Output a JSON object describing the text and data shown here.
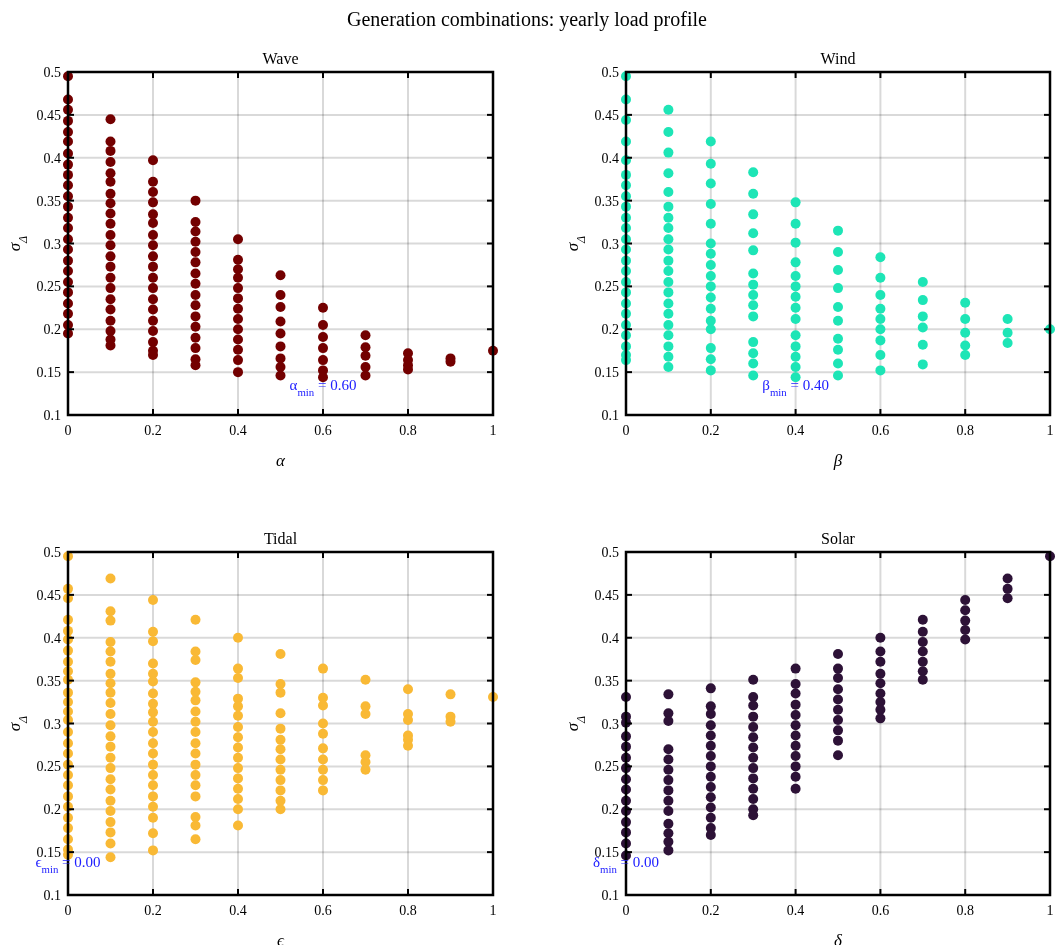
{
  "chart_data": [
    {
      "type": "scatter",
      "title": "Wave",
      "xlabel": "α",
      "ylabel": "σ$_{Δ}$",
      "color": "#730000",
      "marker": "circle",
      "grid": true,
      "xlim": [
        0,
        1
      ],
      "ylim": [
        0.1,
        0.5
      ],
      "xticks": [
        0,
        0.2,
        0.4,
        0.6,
        0.8,
        1
      ],
      "yticks": [
        0.1,
        0.15,
        0.2,
        0.25,
        0.3,
        0.35,
        0.4,
        0.45,
        0.5
      ],
      "annotations": [
        "Generation combinations: yearly load profile",
        {
          "text": "α$_{min}$ = 0.60",
          "x": 0.6,
          "y": 0.135
        }
      ],
      "x": [
        0,
        0,
        0,
        0,
        0,
        0,
        0,
        0,
        0,
        0,
        0,
        0,
        0,
        0,
        0,
        0,
        0,
        0,
        0,
        0,
        0,
        0,
        0,
        0,
        0.1,
        0.1,
        0.1,
        0.1,
        0.1,
        0.1,
        0.1,
        0.1,
        0.1,
        0.1,
        0.1,
        0.1,
        0.1,
        0.1,
        0.1,
        0.1,
        0.1,
        0.1,
        0.1,
        0.1,
        0.1,
        0.1,
        0.2,
        0.2,
        0.2,
        0.2,
        0.2,
        0.2,
        0.2,
        0.2,
        0.2,
        0.2,
        0.2,
        0.2,
        0.2,
        0.2,
        0.2,
        0.2,
        0.2,
        0.2,
        0.2,
        0.3,
        0.3,
        0.3,
        0.3,
        0.3,
        0.3,
        0.3,
        0.3,
        0.3,
        0.3,
        0.3,
        0.3,
        0.3,
        0.3,
        0.3,
        0.3,
        0.4,
        0.4,
        0.4,
        0.4,
        0.4,
        0.4,
        0.4,
        0.4,
        0.4,
        0.4,
        0.4,
        0.4,
        0.4,
        0.5,
        0.5,
        0.5,
        0.5,
        0.5,
        0.5,
        0.5,
        0.5,
        0.5,
        0.6,
        0.6,
        0.6,
        0.6,
        0.6,
        0.6,
        0.6,
        0.7,
        0.7,
        0.7,
        0.7,
        0.7,
        0.8,
        0.8,
        0.8,
        0.8,
        0.9,
        0.9,
        1
      ],
      "values": [
        0.495,
        0.468,
        0.456,
        0.443,
        0.43,
        0.419,
        0.405,
        0.392,
        0.38,
        0.368,
        0.355,
        0.343,
        0.33,
        0.318,
        0.305,
        0.293,
        0.28,
        0.268,
        0.255,
        0.243,
        0.23,
        0.218,
        0.205,
        0.195,
        0.445,
        0.419,
        0.408,
        0.395,
        0.382,
        0.372,
        0.358,
        0.347,
        0.335,
        0.323,
        0.31,
        0.298,
        0.285,
        0.273,
        0.26,
        0.248,
        0.235,
        0.223,
        0.21,
        0.198,
        0.188,
        0.181,
        0.397,
        0.372,
        0.36,
        0.348,
        0.334,
        0.324,
        0.31,
        0.298,
        0.285,
        0.273,
        0.26,
        0.248,
        0.235,
        0.223,
        0.21,
        0.198,
        0.185,
        0.175,
        0.17,
        0.35,
        0.325,
        0.314,
        0.302,
        0.29,
        0.278,
        0.265,
        0.253,
        0.24,
        0.228,
        0.215,
        0.203,
        0.19,
        0.178,
        0.165,
        0.158,
        0.305,
        0.281,
        0.27,
        0.26,
        0.248,
        0.236,
        0.224,
        0.212,
        0.2,
        0.188,
        0.176,
        0.164,
        0.15,
        0.263,
        0.24,
        0.226,
        0.209,
        0.195,
        0.18,
        0.166,
        0.156,
        0.146,
        0.225,
        0.205,
        0.191,
        0.178,
        0.164,
        0.152,
        0.144,
        0.193,
        0.179,
        0.169,
        0.156,
        0.146,
        0.172,
        0.164,
        0.158,
        0.153,
        0.166,
        0.162,
        0.175
      ]
    },
    {
      "type": "scatter",
      "title": "Wind",
      "xlabel": "β",
      "ylabel": "σ$_{Δ}$",
      "color": "#1de5b6",
      "marker": "circle",
      "grid": true,
      "xlim": [
        0,
        1
      ],
      "ylim": [
        0.1,
        0.5
      ],
      "xticks": [
        0,
        0.2,
        0.4,
        0.6,
        0.8,
        1
      ],
      "yticks": [
        0.1,
        0.15,
        0.2,
        0.25,
        0.3,
        0.35,
        0.4,
        0.45,
        0.5
      ],
      "annotations": [
        {
          "text": "β$_{min}$ = 0.40",
          "x": 0.4,
          "y": 0.135
        }
      ],
      "x": [
        0,
        0,
        0,
        0,
        0,
        0,
        0,
        0,
        0,
        0,
        0,
        0,
        0,
        0,
        0,
        0,
        0,
        0,
        0,
        0,
        0,
        0,
        0,
        0,
        0.1,
        0.1,
        0.1,
        0.1,
        0.1,
        0.1,
        0.1,
        0.1,
        0.1,
        0.1,
        0.1,
        0.1,
        0.1,
        0.1,
        0.1,
        0.1,
        0.1,
        0.1,
        0.1,
        0.1,
        0.1,
        0.2,
        0.2,
        0.2,
        0.2,
        0.2,
        0.2,
        0.2,
        0.2,
        0.2,
        0.2,
        0.2,
        0.2,
        0.2,
        0.2,
        0.2,
        0.2,
        0.2,
        0.3,
        0.3,
        0.3,
        0.3,
        0.3,
        0.3,
        0.3,
        0.3,
        0.3,
        0.3,
        0.3,
        0.3,
        0.3,
        0.3,
        0.4,
        0.4,
        0.4,
        0.4,
        0.4,
        0.4,
        0.4,
        0.4,
        0.4,
        0.4,
        0.4,
        0.4,
        0.4,
        0.4,
        0.5,
        0.5,
        0.5,
        0.5,
        0.5,
        0.5,
        0.5,
        0.5,
        0.5,
        0.5,
        0.6,
        0.6,
        0.6,
        0.6,
        0.6,
        0.6,
        0.6,
        0.6,
        0.6,
        0.7,
        0.7,
        0.7,
        0.7,
        0.7,
        0.7,
        0.8,
        0.8,
        0.8,
        0.8,
        0.8,
        0.9,
        0.9,
        0.9,
        1
      ],
      "values": [
        0.495,
        0.468,
        0.444,
        0.419,
        0.397,
        0.38,
        0.368,
        0.355,
        0.343,
        0.33,
        0.318,
        0.305,
        0.293,
        0.28,
        0.268,
        0.255,
        0.243,
        0.23,
        0.218,
        0.205,
        0.193,
        0.18,
        0.17,
        0.164,
        0.456,
        0.43,
        0.406,
        0.382,
        0.36,
        0.343,
        0.33,
        0.318,
        0.305,
        0.293,
        0.28,
        0.268,
        0.255,
        0.243,
        0.23,
        0.218,
        0.205,
        0.193,
        0.18,
        0.168,
        0.156,
        0.419,
        0.393,
        0.37,
        0.346,
        0.323,
        0.3,
        0.288,
        0.275,
        0.262,
        0.25,
        0.237,
        0.224,
        0.21,
        0.2,
        0.178,
        0.165,
        0.152,
        0.383,
        0.358,
        0.334,
        0.312,
        0.292,
        0.265,
        0.252,
        0.24,
        0.228,
        0.215,
        0.185,
        0.172,
        0.16,
        0.146,
        0.348,
        0.323,
        0.301,
        0.278,
        0.262,
        0.25,
        0.238,
        0.225,
        0.212,
        0.193,
        0.18,
        0.168,
        0.156,
        0.144,
        0.315,
        0.29,
        0.269,
        0.248,
        0.226,
        0.21,
        0.189,
        0.176,
        0.16,
        0.146,
        0.284,
        0.26,
        0.24,
        0.224,
        0.212,
        0.2,
        0.187,
        0.17,
        0.152,
        0.255,
        0.234,
        0.215,
        0.202,
        0.182,
        0.159,
        0.231,
        0.212,
        0.196,
        0.181,
        0.17,
        0.212,
        0.196,
        0.184,
        0.2
      ]
    },
    {
      "type": "scatter",
      "title": "Tidal",
      "xlabel": "ϵ",
      "ylabel": "σ$_{Δ}$",
      "color": "#f9b935",
      "marker": "circle",
      "grid": true,
      "xlim": [
        0,
        1
      ],
      "ylim": [
        0.1,
        0.5
      ],
      "xticks": [
        0,
        0.2,
        0.4,
        0.6,
        0.8,
        1
      ],
      "yticks": [
        0.1,
        0.15,
        0.2,
        0.25,
        0.3,
        0.35,
        0.4,
        0.45,
        0.5
      ],
      "annotations": [
        "ϵ$_{min}$ = 0.00"
      ],
      "x": [
        0,
        0,
        0,
        0,
        0,
        0,
        0,
        0,
        0,
        0,
        0,
        0,
        0,
        0,
        0,
        0,
        0,
        0,
        0,
        0,
        0,
        0,
        0,
        0,
        0,
        0,
        0,
        0.1,
        0.1,
        0.1,
        0.1,
        0.1,
        0.1,
        0.1,
        0.1,
        0.1,
        0.1,
        0.1,
        0.1,
        0.1,
        0.1,
        0.1,
        0.1,
        0.1,
        0.1,
        0.1,
        0.1,
        0.1,
        0.1,
        0.1,
        0.1,
        0.2,
        0.2,
        0.2,
        0.2,
        0.2,
        0.2,
        0.2,
        0.2,
        0.2,
        0.2,
        0.2,
        0.2,
        0.2,
        0.2,
        0.2,
        0.2,
        0.2,
        0.2,
        0.2,
        0.2,
        0.2,
        0.3,
        0.3,
        0.3,
        0.3,
        0.3,
        0.3,
        0.3,
        0.3,
        0.3,
        0.3,
        0.3,
        0.3,
        0.3,
        0.3,
        0.3,
        0.3,
        0.3,
        0.3,
        0.4,
        0.4,
        0.4,
        0.4,
        0.4,
        0.4,
        0.4,
        0.4,
        0.4,
        0.4,
        0.4,
        0.4,
        0.4,
        0.4,
        0.4,
        0.4,
        0.5,
        0.5,
        0.5,
        0.5,
        0.5,
        0.5,
        0.5,
        0.5,
        0.5,
        0.5,
        0.5,
        0.5,
        0.5,
        0.6,
        0.6,
        0.6,
        0.6,
        0.6,
        0.6,
        0.6,
        0.6,
        0.6,
        0.6,
        0.7,
        0.7,
        0.7,
        0.7,
        0.7,
        0.7,
        0.8,
        0.8,
        0.8,
        0.8,
        0.8,
        0.8,
        0.9,
        0.9,
        0.9,
        1
      ],
      "values": [
        0.495,
        0.457,
        0.446,
        0.421,
        0.408,
        0.398,
        0.385,
        0.372,
        0.361,
        0.351,
        0.336,
        0.325,
        0.314,
        0.304,
        0.29,
        0.277,
        0.265,
        0.252,
        0.24,
        0.228,
        0.215,
        0.203,
        0.19,
        0.178,
        0.165,
        0.153,
        0.147,
        0.469,
        0.431,
        0.42,
        0.395,
        0.384,
        0.372,
        0.358,
        0.347,
        0.336,
        0.324,
        0.311,
        0.298,
        0.285,
        0.273,
        0.26,
        0.248,
        0.235,
        0.223,
        0.21,
        0.198,
        0.185,
        0.173,
        0.16,
        0.144,
        0.444,
        0.407,
        0.396,
        0.37,
        0.358,
        0.349,
        0.335,
        0.323,
        0.313,
        0.302,
        0.29,
        0.277,
        0.265,
        0.252,
        0.24,
        0.228,
        0.215,
        0.203,
        0.19,
        0.172,
        0.152,
        0.421,
        0.384,
        0.374,
        0.348,
        0.337,
        0.327,
        0.314,
        0.302,
        0.29,
        0.277,
        0.265,
        0.252,
        0.24,
        0.228,
        0.215,
        0.191,
        0.181,
        0.165,
        0.4,
        0.364,
        0.353,
        0.329,
        0.32,
        0.309,
        0.296,
        0.284,
        0.272,
        0.26,
        0.248,
        0.236,
        0.224,
        0.212,
        0.2,
        0.181,
        0.381,
        0.346,
        0.336,
        0.312,
        0.294,
        0.281,
        0.27,
        0.258,
        0.246,
        0.234,
        0.222,
        0.21,
        0.2,
        0.364,
        0.33,
        0.321,
        0.3,
        0.288,
        0.271,
        0.258,
        0.246,
        0.234,
        0.222,
        0.351,
        0.32,
        0.311,
        0.263,
        0.255,
        0.246,
        0.34,
        0.311,
        0.304,
        0.286,
        0.281,
        0.274,
        0.334,
        0.308,
        0.302,
        0.331
      ]
    },
    {
      "type": "scatter",
      "title": "Solar",
      "xlabel": "δ",
      "ylabel": "σ$_{Δ}$",
      "color": "#2d1237",
      "marker": "circle",
      "grid": true,
      "xlim": [
        0,
        1
      ],
      "ylim": [
        0.1,
        0.5
      ],
      "xticks": [
        0,
        0.2,
        0.4,
        0.6,
        0.8,
        1
      ],
      "yticks": [
        0.1,
        0.15,
        0.2,
        0.25,
        0.3,
        0.35,
        0.4,
        0.45,
        0.5
      ],
      "annotations": [
        "δ$_{min}$ = 0.00"
      ],
      "x": [
        0,
        0,
        0,
        0,
        0,
        0,
        0,
        0,
        0,
        0,
        0,
        0,
        0,
        0,
        0,
        0.1,
        0.1,
        0.1,
        0.1,
        0.1,
        0.1,
        0.1,
        0.1,
        0.1,
        0.1,
        0.1,
        0.1,
        0.1,
        0.1,
        0.2,
        0.2,
        0.2,
        0.2,
        0.2,
        0.2,
        0.2,
        0.2,
        0.2,
        0.2,
        0.2,
        0.2,
        0.2,
        0.2,
        0.2,
        0.3,
        0.3,
        0.3,
        0.3,
        0.3,
        0.3,
        0.3,
        0.3,
        0.3,
        0.3,
        0.3,
        0.3,
        0.3,
        0.3,
        0.4,
        0.4,
        0.4,
        0.4,
        0.4,
        0.4,
        0.4,
        0.4,
        0.4,
        0.4,
        0.4,
        0.4,
        0.5,
        0.5,
        0.5,
        0.5,
        0.5,
        0.5,
        0.5,
        0.5,
        0.5,
        0.5,
        0.6,
        0.6,
        0.6,
        0.6,
        0.6,
        0.6,
        0.6,
        0.6,
        0.6,
        0.7,
        0.7,
        0.7,
        0.7,
        0.7,
        0.7,
        0.7,
        0.8,
        0.8,
        0.8,
        0.8,
        0.8,
        0.9,
        0.9,
        0.9,
        1
      ],
      "values": [
        0.331,
        0.308,
        0.301,
        0.285,
        0.273,
        0.26,
        0.248,
        0.235,
        0.223,
        0.21,
        0.198,
        0.185,
        0.173,
        0.16,
        0.146,
        0.334,
        0.312,
        0.303,
        0.27,
        0.258,
        0.246,
        0.234,
        0.222,
        0.21,
        0.198,
        0.183,
        0.172,
        0.162,
        0.152,
        0.341,
        0.32,
        0.311,
        0.298,
        0.286,
        0.274,
        0.262,
        0.25,
        0.238,
        0.226,
        0.214,
        0.202,
        0.19,
        0.178,
        0.17,
        0.351,
        0.331,
        0.321,
        0.308,
        0.296,
        0.284,
        0.272,
        0.26,
        0.248,
        0.236,
        0.224,
        0.212,
        0.2,
        0.193,
        0.364,
        0.346,
        0.335,
        0.322,
        0.31,
        0.298,
        0.286,
        0.274,
        0.262,
        0.25,
        0.238,
        0.224,
        0.381,
        0.364,
        0.353,
        0.34,
        0.328,
        0.316,
        0.304,
        0.292,
        0.28,
        0.263,
        0.4,
        0.384,
        0.372,
        0.358,
        0.347,
        0.335,
        0.325,
        0.316,
        0.306,
        0.421,
        0.407,
        0.395,
        0.384,
        0.372,
        0.361,
        0.351,
        0.444,
        0.432,
        0.42,
        0.409,
        0.398,
        0.469,
        0.457,
        0.446,
        0.495
      ]
    }
  ]
}
